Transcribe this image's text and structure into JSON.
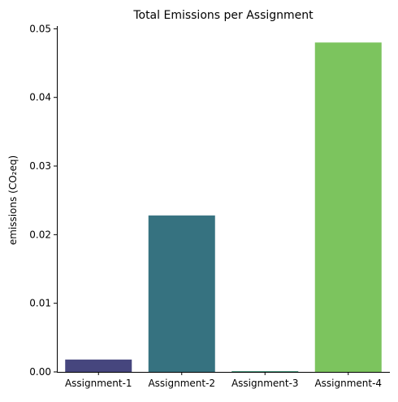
{
  "chart_data": {
    "type": "bar",
    "title": "Total Emissions per Assignment",
    "xlabel": "",
    "ylabel": "emissions (CO₂eq)",
    "categories": [
      "Assignment-1",
      "Assignment-2",
      "Assignment-3",
      "Assignment-4"
    ],
    "values": [
      0.0018,
      0.0228,
      0.0001,
      0.048
    ],
    "colors": [
      "#46467e",
      "#367280",
      "#2e8a6a",
      "#7cc45e"
    ],
    "ylim": [
      0,
      0.0504
    ],
    "yticks": [
      "0.00",
      "0.01",
      "0.02",
      "0.03",
      "0.04",
      "0.05"
    ],
    "ytick_values": [
      0,
      0.01,
      0.02,
      0.03,
      0.04,
      0.05
    ],
    "grid": false,
    "legend": "none"
  }
}
